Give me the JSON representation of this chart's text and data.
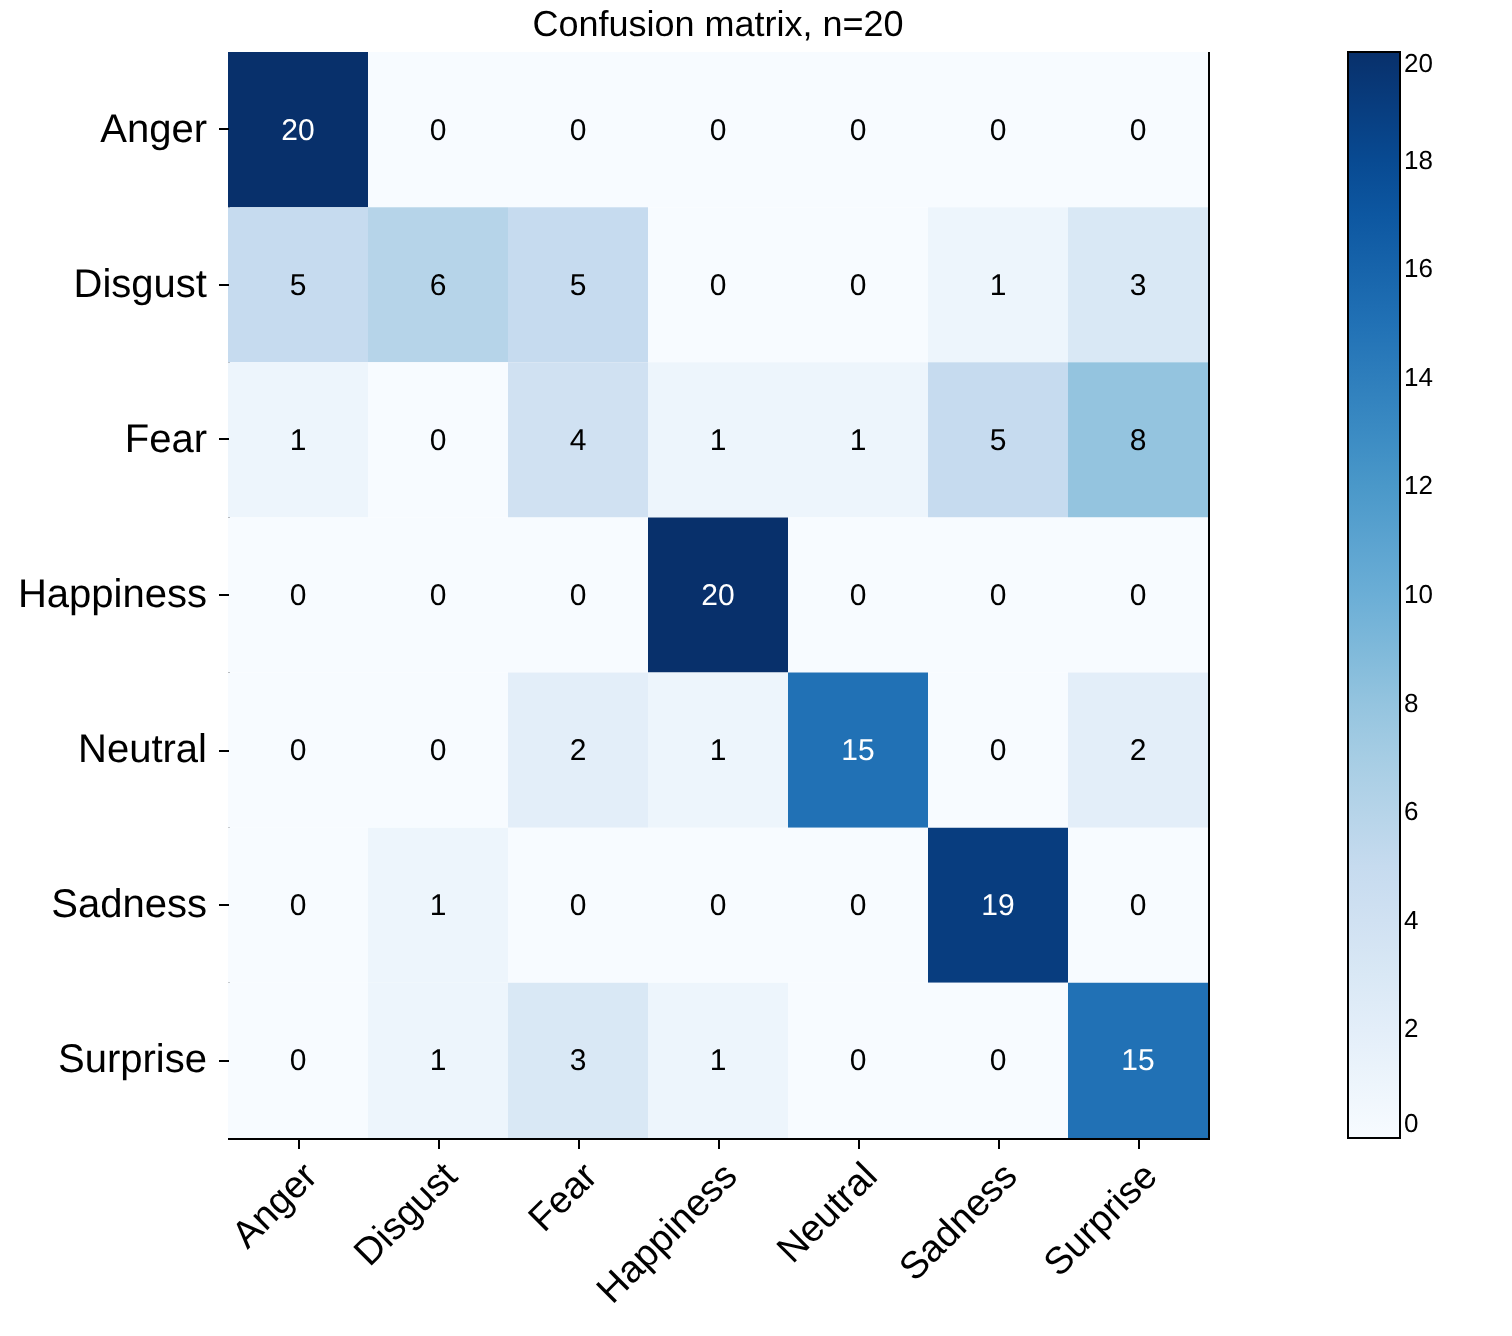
{
  "chart_data": {
    "type": "heatmap",
    "title": "Confusion matrix, n=20",
    "categories": [
      "Anger",
      "Disgust",
      "Fear",
      "Happiness",
      "Neutral",
      "Sadness",
      "Surprise"
    ],
    "y_categories": [
      "Anger",
      "Disgust",
      "Fear",
      "Happiness",
      "Neutral",
      "Sadness",
      "Surprise"
    ],
    "cells": [
      [
        20,
        0,
        0,
        0,
        0,
        0,
        0
      ],
      [
        5,
        6,
        5,
        0,
        0,
        1,
        3
      ],
      [
        1,
        0,
        4,
        1,
        1,
        5,
        8
      ],
      [
        0,
        0,
        0,
        20,
        0,
        0,
        0
      ],
      [
        0,
        0,
        2,
        1,
        15,
        0,
        2
      ],
      [
        0,
        1,
        0,
        0,
        0,
        19,
        0
      ],
      [
        0,
        1,
        3,
        1,
        0,
        0,
        15
      ]
    ],
    "clim": [
      0,
      20
    ],
    "cticks": [
      0,
      2,
      4,
      6,
      8,
      10,
      12,
      14,
      16,
      18,
      20
    ],
    "data_labels": true
  }
}
